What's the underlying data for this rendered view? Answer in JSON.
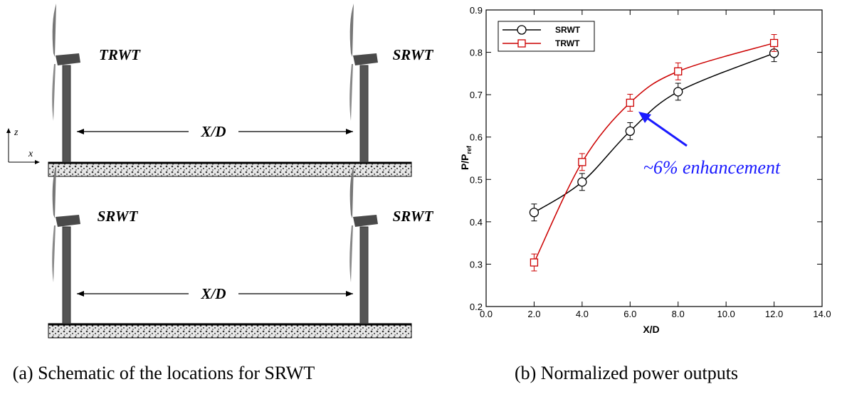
{
  "schematic": {
    "top": {
      "left_label": "TRWT",
      "right_label": "SRWT",
      "spacing": "X/D"
    },
    "bottom": {
      "left_label": "SRWT",
      "right_label": "SRWT",
      "spacing": "X/D"
    },
    "axes": {
      "z": "z",
      "x": "x"
    },
    "caption": "(a) Schematic of the locations for SRWT"
  },
  "chart_data": {
    "type": "line",
    "x": [
      2,
      4,
      6,
      8,
      12
    ],
    "series": [
      {
        "name": "SRWT",
        "color": "#000000",
        "marker": "circle",
        "values": [
          0.422,
          0.494,
          0.614,
          0.707,
          0.798
        ],
        "errors": [
          0.02,
          0.02,
          0.02,
          0.02,
          0.02
        ]
      },
      {
        "name": "TRWT",
        "color": "#cc0000",
        "marker": "square",
        "values": [
          0.304,
          0.541,
          0.681,
          0.755,
          0.822
        ],
        "errors": [
          0.02,
          0.02,
          0.02,
          0.02,
          0.02
        ]
      }
    ],
    "xlim": [
      0,
      14
    ],
    "xticks": [
      {
        "value": 0,
        "label": "0.0"
      },
      {
        "value": 2,
        "label": "2.0"
      },
      {
        "value": 4,
        "label": "4.0"
      },
      {
        "value": 6,
        "label": "6.0"
      },
      {
        "value": 8,
        "label": "8.0"
      },
      {
        "value": 10,
        "label": "10.0"
      },
      {
        "value": 12,
        "label": "12.0"
      },
      {
        "value": 14,
        "label": "14.0"
      }
    ],
    "ylim": [
      0.2,
      0.9
    ],
    "yticks": [
      0.2,
      0.3,
      0.4,
      0.5,
      0.6,
      0.7,
      0.8,
      0.9
    ],
    "xlabel": "X/D",
    "ylabel": {
      "main": "P/P",
      "sub": "ref"
    },
    "legend": "upper left",
    "annotation": {
      "text": "~6% enhancement",
      "color": "#1a1aff"
    },
    "caption": "(b) Normalized power outputs"
  }
}
